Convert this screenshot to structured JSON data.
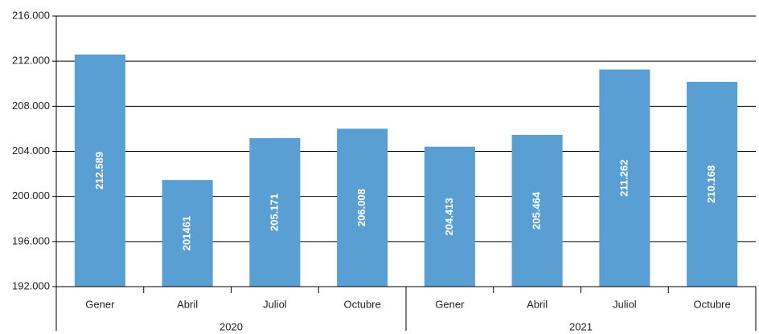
{
  "chart_data": {
    "type": "bar",
    "categories": [
      "Gener",
      "Abril",
      "Juliol",
      "Octubre",
      "Gener",
      "Abril",
      "Juliol",
      "Octubre"
    ],
    "group_labels": [
      "2020",
      "2021"
    ],
    "values": [
      212589,
      201461,
      205171,
      206008,
      204413,
      205464,
      211262,
      210168
    ],
    "value_labels": [
      "212.589",
      "201461",
      "205.171",
      "206.008",
      "204.413",
      "205.464",
      "211.262",
      "210.168"
    ],
    "color": "#5a9fd4",
    "ylim": [
      192000,
      216000
    ],
    "yticks": [
      {
        "value": 192000,
        "label": "192.000"
      },
      {
        "value": 196000,
        "label": "196.000"
      },
      {
        "value": 200000,
        "label": "200.000"
      },
      {
        "value": 204000,
        "label": "204.000"
      },
      {
        "value": 208000,
        "label": "208.000"
      },
      {
        "value": 212000,
        "label": "212.000"
      },
      {
        "value": 216000,
        "label": "216.000"
      }
    ],
    "grid": true
  }
}
